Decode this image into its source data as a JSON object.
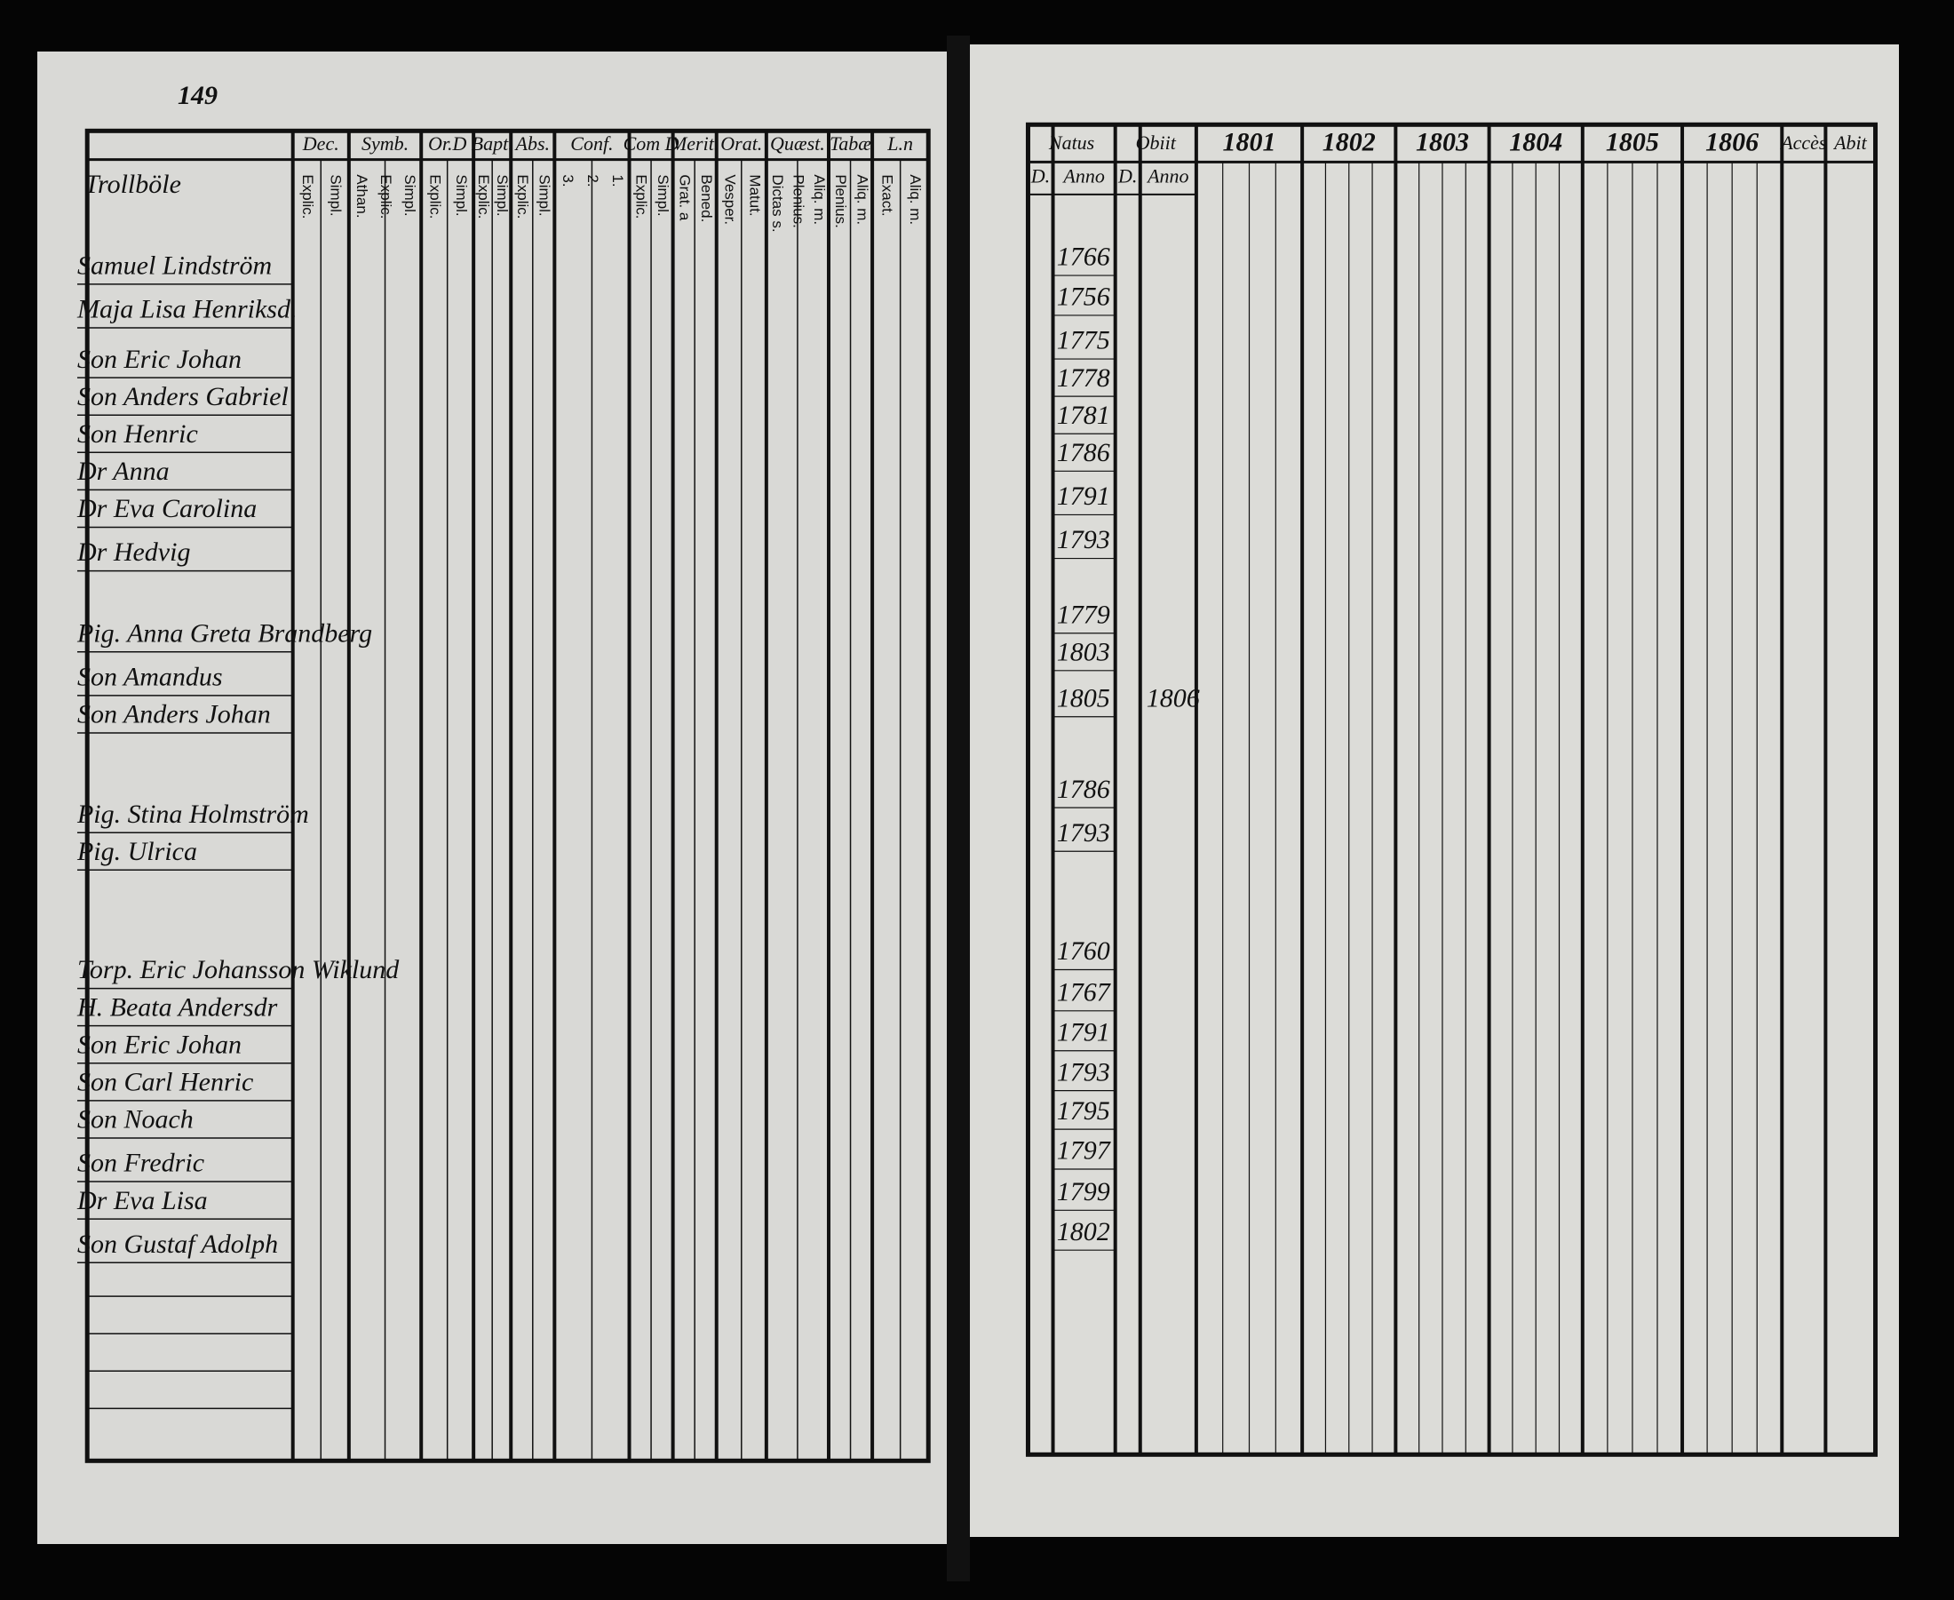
{
  "page_number": "149",
  "left_page": {
    "place": "Trollböle",
    "columns": [
      {
        "head": "Dec.",
        "sub": [
          "Explic.",
          "Simpl."
        ]
      },
      {
        "head": "Symb.",
        "sub": [
          "Athan.",
          "Explic.",
          "Simpl."
        ]
      },
      {
        "head": "Or.D",
        "sub": [
          "Explic.",
          "Simpl."
        ]
      },
      {
        "head": "Bapt.",
        "sub": [
          "Explic.",
          "Simpl."
        ]
      },
      {
        "head": "Abs.",
        "sub": [
          "Explic.",
          "Simpl."
        ]
      },
      {
        "head": "Conf.",
        "sub": [
          "3.",
          "2.",
          "1."
        ]
      },
      {
        "head": "Com D",
        "sub": [
          "Explic.",
          "Simpl."
        ]
      },
      {
        "head": "Merit.",
        "sub": [
          "Grat. a",
          "Bened."
        ]
      },
      {
        "head": "Orat.",
        "sub": [
          "Vesper.",
          "Matut."
        ]
      },
      {
        "head": "Quæst.",
        "sub": [
          "Dictas s.",
          "Plenius.",
          "Aliq. m."
        ]
      },
      {
        "head": "Tabæ",
        "sub": [
          "Plenius.",
          "Aliq. m."
        ]
      },
      {
        "head": "L.n",
        "sub": [
          "Exact.",
          "Aliq. m."
        ]
      }
    ],
    "people": [
      "Samuel Lindström",
      "Maja Lisa Henriksd.",
      "Son Eric Johan",
      "Son Anders Gabriel",
      "Son Henric",
      "Dr Anna",
      "Dr Eva Carolina",
      "Dr Hedvig",
      "Pig. Anna Greta Brandberg",
      "Son Amandus",
      "Son Anders Johan",
      "Pig. Stina Holmström",
      "Pig. Ulrica",
      "Torp. Eric Johansson Wiklund",
      "H. Beata Andersdr",
      "Son Eric Johan",
      "Son Carl Henric",
      "Son Noach",
      "Son Fredric",
      "Dr Eva Lisa",
      "Son Gustaf Adolph"
    ]
  },
  "right_page": {
    "headers": [
      "Natus",
      "Obiit",
      "1801",
      "1802",
      "1803",
      "1804",
      "1805",
      "1806",
      "Accès",
      "Abit"
    ],
    "sub_headers": [
      "D.",
      "Anno",
      "D.",
      "Anno"
    ],
    "born": [
      "1766",
      "1756",
      "1775",
      "1778",
      "1781",
      "1786",
      "1791",
      "1793",
      "1779",
      "1803",
      "1805",
      "1786",
      "1793",
      "1760",
      "1767",
      "1791",
      "1793",
      "1795",
      "1797",
      "1799",
      "1802"
    ],
    "died": [
      {
        "row": 10,
        "year": "1806"
      }
    ]
  }
}
